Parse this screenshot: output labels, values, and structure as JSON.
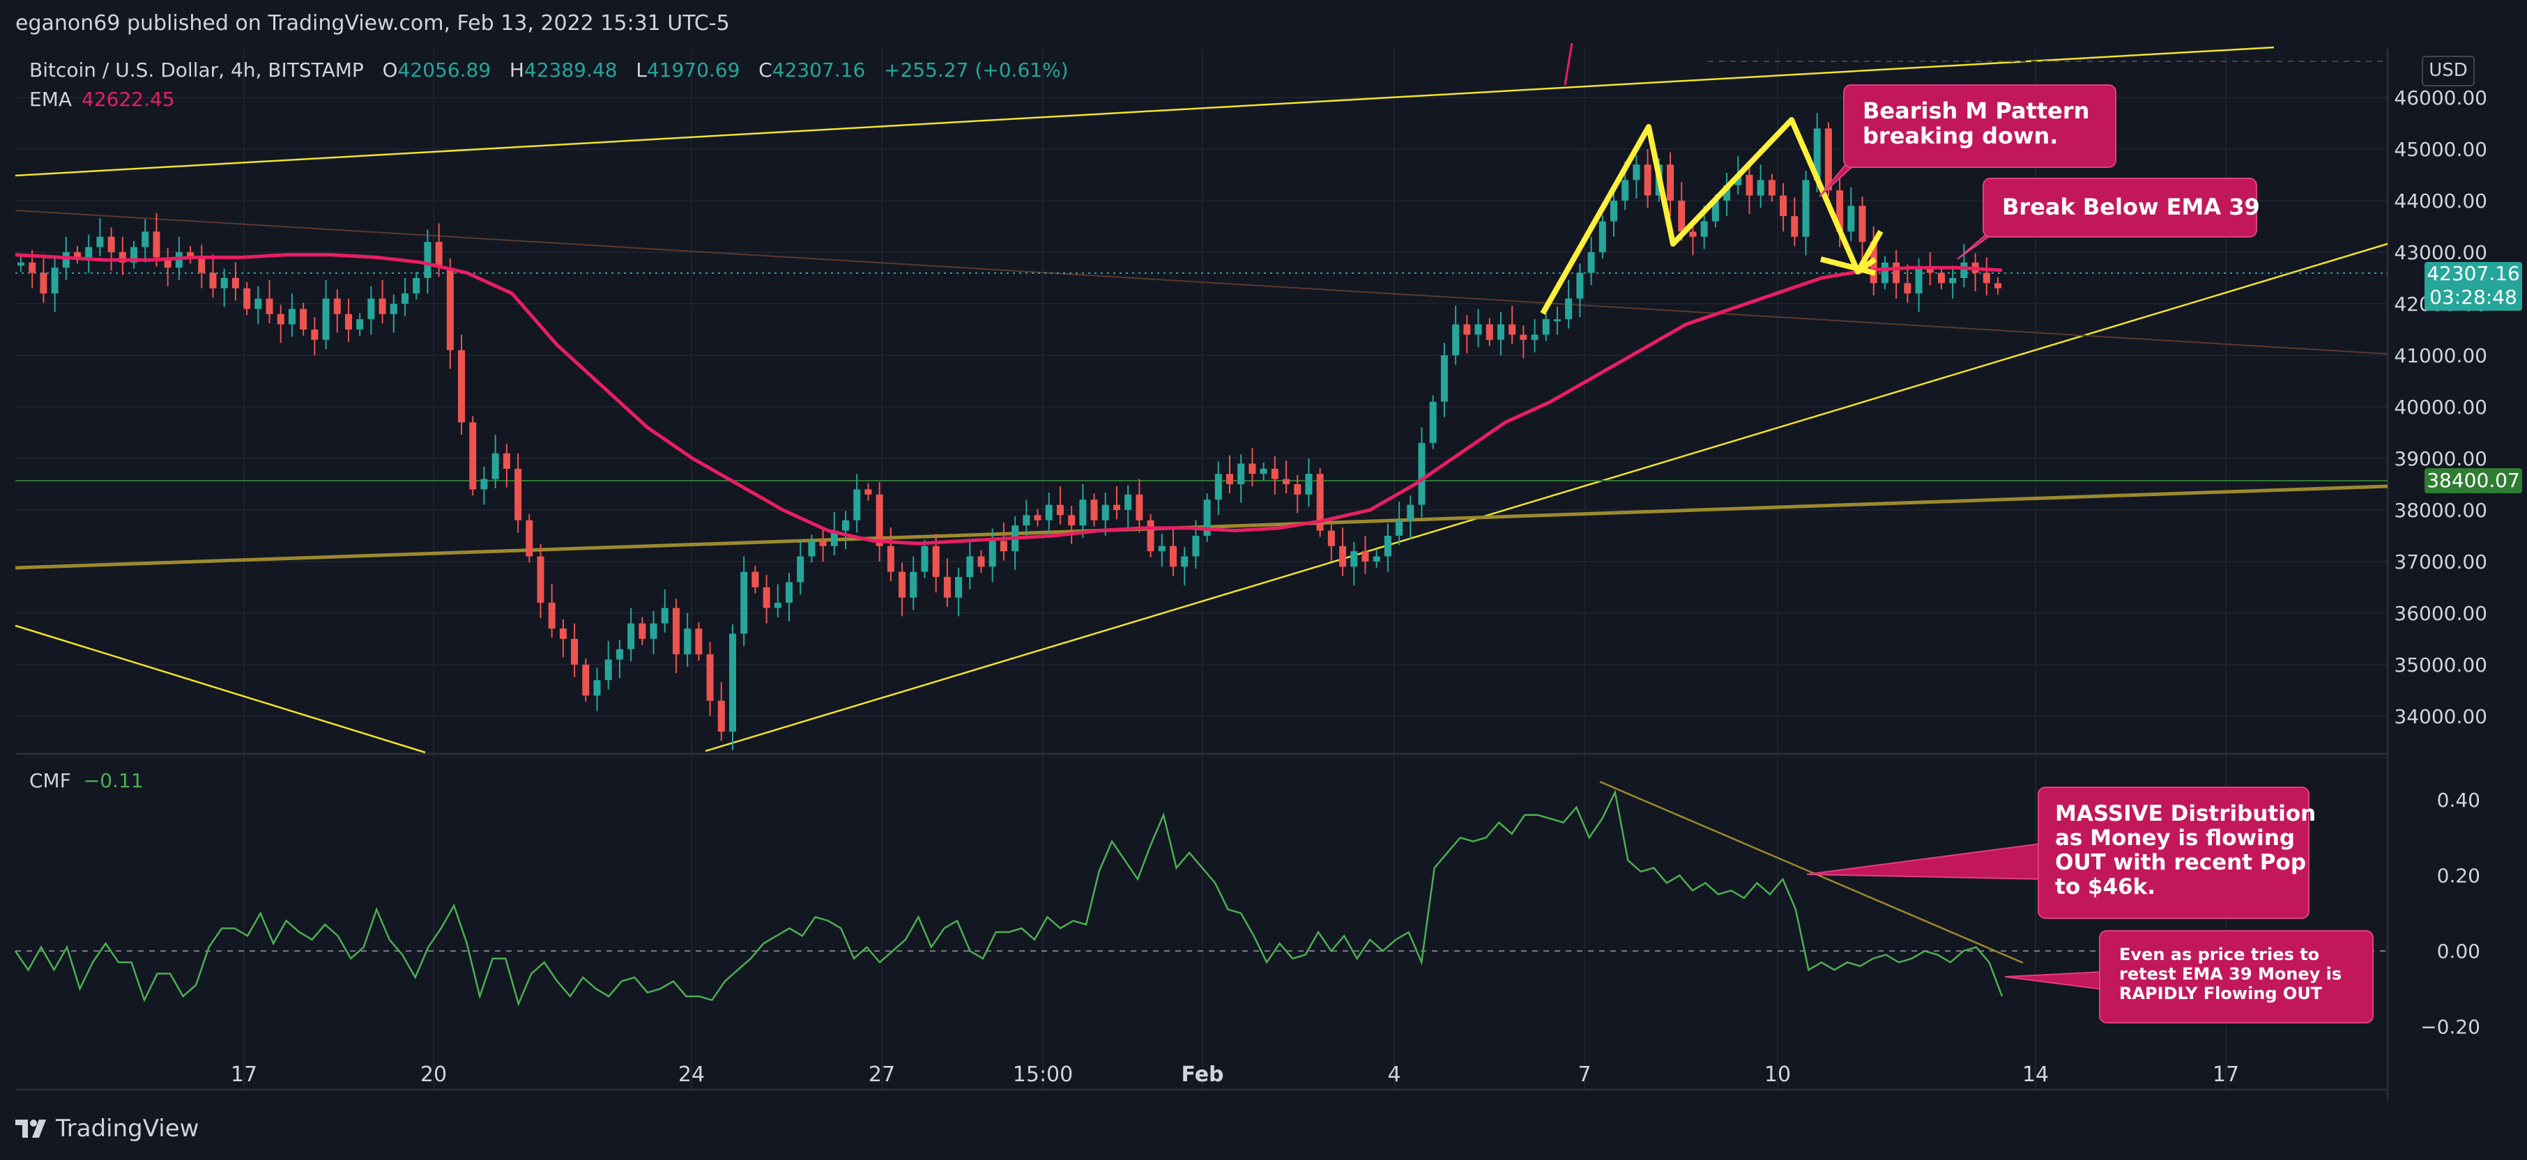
{
  "header": {
    "published": "eganon69 published on TradingView.com, Feb 13, 2022 15:31 UTC-5"
  },
  "legend": {
    "symbol": "Bitcoin / U.S. Dollar, 4h, BITSTAMP",
    "o_label": "O",
    "o_value": "42056.89",
    "h_label": "H",
    "h_value": "42389.48",
    "l_label": "L",
    "l_value": "41970.69",
    "c_label": "C",
    "c_value": "42307.16",
    "change": "+255.27 (+0.61%)",
    "ema_label": "EMA",
    "ema_value": "42622.45",
    "cmf_label": "CMF",
    "cmf_value": "−0.11"
  },
  "price_tags": {
    "last_price": "42307.16",
    "countdown": "03:28:48",
    "level": "38400.07",
    "currency_button": "USD"
  },
  "annotations": [
    {
      "text": [
        "Bearish M Pattern",
        "breaking down."
      ]
    },
    {
      "text": [
        "Break Below EMA 39"
      ]
    },
    {
      "text": [
        "MASSIVE Distribution",
        "as Money is flowing",
        "OUT with recent Pop",
        "to $46k."
      ]
    },
    {
      "text": [
        "Even as price tries to",
        "retest EMA 39 Money is",
        "RAPIDLY Flowing OUT"
      ]
    }
  ],
  "footer": {
    "brand": "TradingView"
  },
  "colors": {
    "background": "#131722",
    "up": "#26a69a",
    "down": "#ef5350",
    "ema": "#e91e63",
    "cmf": "#4caf50",
    "trendline": "#f2e52a",
    "support": "#9c8a2e",
    "callout": "#c2185b"
  },
  "chart_data": [
    {
      "type": "candlestick",
      "title": "Bitcoin / U.S. Dollar, 4h, BITSTAMP",
      "x_tick_labels": [
        "17",
        "20",
        "24",
        "27",
        "15:00",
        "Feb",
        "4",
        "7",
        "10",
        "14",
        "17"
      ],
      "y_tick_labels": [
        "34000.00",
        "35000.00",
        "36000.00",
        "37000.00",
        "38000.00",
        "39000.00",
        "40000.00",
        "41000.00",
        "42000.00",
        "43000.00",
        "44000.00",
        "45000.00",
        "46000.00"
      ],
      "ylim": [
        33300,
        46500
      ],
      "series": [
        {
          "name": "BTCUSD",
          "close": [
            42800,
            42600,
            42200,
            42700,
            43000,
            42900,
            43100,
            43300,
            43000,
            42800,
            43100,
            43400,
            42900,
            42700,
            43000,
            42900,
            42600,
            42300,
            42500,
            42300,
            41900,
            42100,
            41800,
            41600,
            41900,
            41500,
            41300,
            42100,
            41800,
            41500,
            41700,
            42100,
            41800,
            42000,
            42200,
            42500,
            43200,
            42700,
            41100,
            39700,
            38400,
            38600,
            39100,
            38800,
            37800,
            37100,
            36200,
            35700,
            35500,
            35000,
            34400,
            34700,
            35100,
            35300,
            35800,
            35500,
            35800,
            36100,
            35200,
            35700,
            35200,
            34300,
            33700,
            35600,
            36800,
            36500,
            36100,
            36200,
            36600,
            37100,
            37400,
            37300,
            37600,
            37800,
            38400,
            38300,
            37300,
            36800,
            36300,
            36800,
            37300,
            36700,
            36300,
            36700,
            37100,
            36900,
            37400,
            37200,
            37700,
            37900,
            37800,
            38100,
            37900,
            37700,
            38200,
            37800,
            38100,
            38000,
            38300,
            37800,
            37200,
            37300,
            36900,
            37100,
            37500,
            38200,
            38700,
            38500,
            38900,
            38700,
            38800,
            38600,
            38500,
            38300,
            38700,
            37600,
            37300,
            36900,
            37200,
            37000,
            37100,
            37500,
            37800,
            38100,
            39300,
            40100,
            41000,
            41600,
            41400,
            41600,
            41300,
            41600,
            41400,
            41300,
            41400,
            41700,
            41700,
            42100,
            42600,
            43000,
            43600,
            44000,
            44400,
            44700,
            44100,
            44700,
            44000,
            43400,
            43300,
            43600,
            44000,
            44300,
            44500,
            44100,
            44400,
            44100,
            43700,
            43300,
            44400,
            45400,
            44200,
            43400,
            43900,
            43200,
            42400,
            42800,
            42400,
            42200,
            42700,
            42600,
            42400,
            42500,
            42800,
            42600,
            42400,
            42300
          ]
        },
        {
          "name": "EMA 39",
          "values": [
            42950,
            42900,
            42850,
            42850,
            42900,
            42900,
            42950,
            42950,
            42900,
            42800,
            42600,
            42200,
            41200,
            40400,
            39600,
            39000,
            38500,
            38000,
            37600,
            37400,
            37350,
            37400,
            37450,
            37500,
            37600,
            37650,
            37650,
            37600,
            37650,
            37800,
            38000,
            38500,
            39100,
            39700,
            40100,
            40600,
            41100,
            41600,
            41900,
            42200,
            42500,
            42650,
            42700,
            42700,
            42650
          ]
        }
      ]
    },
    {
      "type": "line",
      "title": "CMF",
      "y_tick_labels": [
        "0.40",
        "0.20",
        "0.00",
        "−0.20"
      ],
      "ylim": [
        -0.27,
        0.47
      ],
      "series": [
        {
          "name": "CMF",
          "values": [
            0.0,
            -0.05,
            0.01,
            -0.05,
            0.01,
            -0.1,
            -0.03,
            0.02,
            -0.03,
            -0.03,
            -0.13,
            -0.06,
            -0.06,
            -0.12,
            -0.09,
            0.01,
            0.06,
            0.06,
            0.04,
            0.1,
            0.02,
            0.08,
            0.05,
            0.03,
            0.07,
            0.04,
            -0.02,
            0.01,
            0.11,
            0.03,
            -0.01,
            -0.07,
            0.01,
            0.06,
            0.12,
            0.02,
            -0.12,
            -0.02,
            -0.02,
            -0.14,
            -0.06,
            -0.03,
            -0.08,
            -0.12,
            -0.07,
            -0.1,
            -0.12,
            -0.08,
            -0.07,
            -0.11,
            -0.1,
            -0.08,
            -0.12,
            -0.12,
            -0.13,
            -0.08,
            -0.05,
            -0.02,
            0.02,
            0.04,
            0.06,
            0.04,
            0.09,
            0.08,
            0.06,
            -0.02,
            0.01,
            -0.03,
            0.0,
            0.03,
            0.09,
            0.01,
            0.06,
            0.08,
            0.0,
            -0.02,
            0.05,
            0.05,
            0.06,
            0.03,
            0.09,
            0.06,
            0.08,
            0.07,
            0.21,
            0.29,
            0.24,
            0.19,
            0.28,
            0.36,
            0.22,
            0.26,
            0.22,
            0.18,
            0.11,
            0.1,
            0.04,
            -0.03,
            0.02,
            -0.02,
            -0.01,
            0.05,
            0.0,
            0.04,
            -0.02,
            0.03,
            0.0,
            0.03,
            0.05,
            -0.03,
            0.22,
            0.26,
            0.3,
            0.29,
            0.3,
            0.34,
            0.31,
            0.36,
            0.36,
            0.35,
            0.34,
            0.38,
            0.3,
            0.35,
            0.42,
            0.24,
            0.21,
            0.22,
            0.18,
            0.2,
            0.16,
            0.18,
            0.15,
            0.16,
            0.14,
            0.18,
            0.15,
            0.19,
            0.11,
            -0.05,
            -0.03,
            -0.05,
            -0.03,
            -0.04,
            -0.02,
            -0.01,
            -0.03,
            -0.02,
            0.0,
            -0.01,
            -0.03,
            0.0,
            0.01,
            -0.03,
            -0.12
          ]
        }
      ]
    }
  ]
}
